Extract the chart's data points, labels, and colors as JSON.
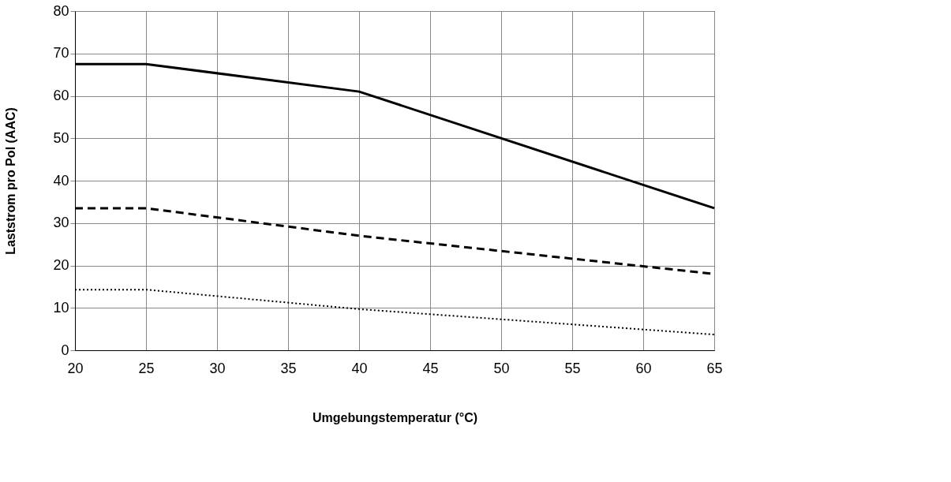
{
  "chart_data": {
    "type": "line",
    "xlabel": "Umgebungstemperatur (°C)",
    "ylabel": "Laststrom pro Pol (AAC)",
    "xlim": [
      20,
      65
    ],
    "xticks": [
      20,
      25,
      30,
      35,
      40,
      45,
      50,
      55,
      60,
      65
    ],
    "ylim": [
      0,
      80
    ],
    "yticks": [
      0,
      10,
      20,
      30,
      40,
      50,
      60,
      70,
      80
    ],
    "grid": true,
    "marker": "none",
    "series": [
      {
        "color": "#000000",
        "line_style": "solid",
        "x": [
          20,
          25,
          40,
          65
        ],
        "values": [
          67.5,
          67.5,
          61,
          33.5
        ]
      },
      {
        "color": "#000000",
        "line_style": "dashed",
        "x": [
          20,
          25,
          40,
          65
        ],
        "values": [
          33.5,
          33.5,
          27,
          18
        ]
      },
      {
        "color": "#000000",
        "line_style": "dotted",
        "x": [
          20,
          25,
          40,
          65
        ],
        "values": [
          14.3,
          14.3,
          9.7,
          3.7
        ]
      }
    ]
  }
}
